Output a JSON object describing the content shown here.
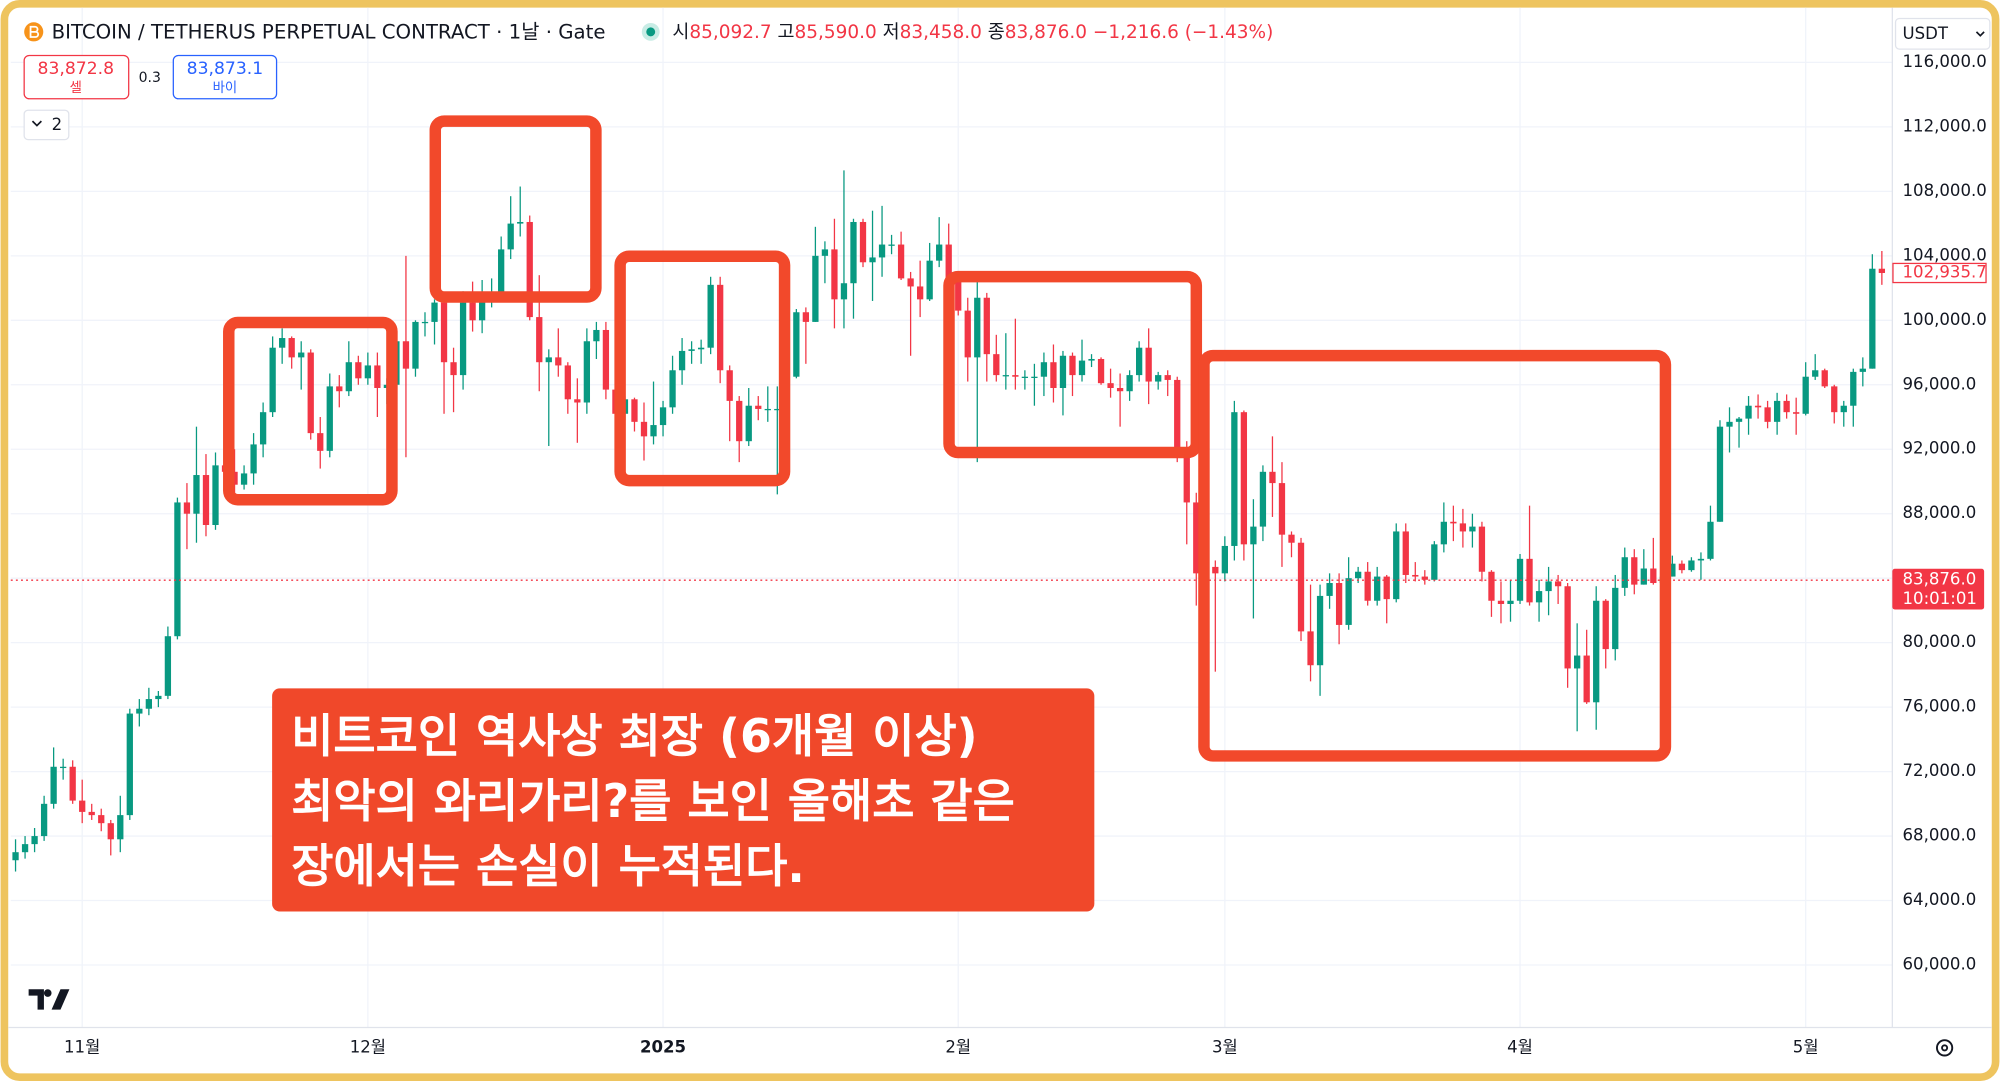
{
  "header": {
    "symbol": "BITCOIN / TETHERUS PERPETUAL CONTRACT · 1날 · Gate",
    "ohlc": [
      {
        "label": "시",
        "value": "85,092.7"
      },
      {
        "label": "고",
        "value": "85,590.0"
      },
      {
        "label": "저",
        "value": "83,458.0"
      },
      {
        "label": "종",
        "value": "83,876.0"
      }
    ],
    "change": "−1,216.6 (−1.43%)"
  },
  "trade": {
    "sell": "83,872.8",
    "sell_label": "셀",
    "spread": "0.3",
    "buy": "83,873.1",
    "buy_label": "바이",
    "indicators": "2",
    "currency": "USDT"
  },
  "annotation": {
    "lines": [
      "비트코인 역사상 최장 (6개월 이상)",
      "최악의 와리가리?를 보인 올해초 같은",
      "장에서는 손실이 누적된다."
    ]
  },
  "chart_data": {
    "type": "candlestick",
    "up_color": "#089981",
    "down_color": "#f23645",
    "grid": true,
    "xlim": [
      -7.5,
      190.1
    ],
    "ylim": [
      56600,
      117500
    ],
    "xticks": [
      {
        "value": 0,
        "label": "11월"
      },
      {
        "value": 30,
        "label": "12월"
      },
      {
        "value": 61,
        "label": "2025"
      },
      {
        "value": 92,
        "label": "2월"
      },
      {
        "value": 120,
        "label": "3월"
      },
      {
        "value": 151,
        "label": "4월"
      },
      {
        "value": 181,
        "label": "5월"
      }
    ],
    "yticks": [
      {
        "value": 60000,
        "label": "60,000.0"
      },
      {
        "value": 64000,
        "label": "64,000.0"
      },
      {
        "value": 68000,
        "label": "68,000.0"
      },
      {
        "value": 72000,
        "label": "72,000.0"
      },
      {
        "value": 76000,
        "label": "76,000.0"
      },
      {
        "value": 80000,
        "label": "80,000.0"
      },
      {
        "value": 84000,
        "label": "84,000.0"
      },
      {
        "value": 88000,
        "label": "88,000.0"
      },
      {
        "value": 92000,
        "label": "92,000.0"
      },
      {
        "value": 96000,
        "label": "96,000.0"
      },
      {
        "value": 100000,
        "label": "100,000.0"
      },
      {
        "value": 104000,
        "label": "104,000.0"
      },
      {
        "value": 108000,
        "label": "108,000.0"
      },
      {
        "value": 112000,
        "label": "112,000.0"
      },
      {
        "value": 116000,
        "label": "116,000.0"
      }
    ],
    "price_labels": [
      {
        "value": 102935.7,
        "label": "102,935.7"
      },
      {
        "value": 83876,
        "label": "83,876.0",
        "time": "10:01:01"
      }
    ],
    "x": [
      -7,
      -6,
      -5,
      -4,
      -3,
      -2,
      -1,
      0,
      1,
      2,
      3,
      4,
      5,
      6,
      7,
      8,
      9,
      10,
      11,
      12,
      13,
      14,
      15,
      16,
      17,
      18,
      19,
      20,
      21,
      22,
      23,
      24,
      25,
      26,
      27,
      28,
      29,
      30,
      31,
      32,
      33,
      34,
      35,
      36,
      37,
      38,
      39,
      40,
      41,
      42,
      43,
      44,
      45,
      46,
      47,
      48,
      49,
      50,
      51,
      52,
      53,
      54,
      55,
      56,
      57,
      58,
      59,
      60,
      61,
      62,
      63,
      64,
      65,
      66,
      67,
      68,
      69,
      70,
      71,
      72,
      73,
      74,
      75,
      76,
      77,
      78,
      79,
      80,
      81,
      82,
      83,
      84,
      85,
      86,
      87,
      88,
      89,
      90,
      91,
      92,
      93,
      94,
      95,
      96,
      97,
      98,
      99,
      100,
      101,
      102,
      103,
      104,
      105,
      106,
      107,
      108,
      109,
      110,
      111,
      112,
      113,
      114,
      115,
      116,
      117,
      118,
      119,
      120,
      121,
      122,
      123,
      124,
      125,
      126,
      127,
      128,
      129,
      130,
      131,
      132,
      133,
      134,
      135,
      136,
      137,
      138,
      139,
      140,
      141,
      142,
      143,
      144,
      145,
      146,
      147,
      148,
      149,
      150,
      151,
      152,
      153,
      154,
      155,
      156,
      157,
      158,
      159,
      160,
      161,
      162,
      163,
      164,
      165,
      166,
      167,
      168,
      169,
      170,
      171,
      172,
      173,
      174,
      175,
      176,
      177,
      178,
      179,
      180,
      181,
      182,
      183,
      184,
      185,
      186,
      187,
      188,
      189
    ],
    "ohlc": [
      [
        66500,
        67800,
        65800,
        67000
      ],
      [
        67000,
        68000,
        66600,
        67500
      ],
      [
        67500,
        68500,
        67000,
        68000
      ],
      [
        68000,
        70500,
        67700,
        70000
      ],
      [
        70000,
        73500,
        69700,
        72300
      ],
      [
        72300,
        72800,
        71500,
        72300
      ],
      [
        72300,
        72700,
        70000,
        70200
      ],
      [
        70200,
        71500,
        68800,
        69500
      ],
      [
        69500,
        70000,
        69000,
        69300
      ],
      [
        69300,
        69700,
        68300,
        68800
      ],
      [
        68800,
        69000,
        66800,
        67800
      ],
      [
        67800,
        70500,
        67000,
        69300
      ],
      [
        69300,
        75900,
        69000,
        75600
      ],
      [
        75600,
        76500,
        74800,
        75900
      ],
      [
        75900,
        77200,
        75500,
        76500
      ],
      [
        76500,
        77000,
        76000,
        76700
      ],
      [
        76700,
        81000,
        76500,
        80400
      ],
      [
        80400,
        89000,
        80200,
        88700
      ],
      [
        88700,
        89900,
        85800,
        88000
      ],
      [
        88000,
        93400,
        86200,
        90400
      ],
      [
        90400,
        91700,
        86600,
        87300
      ],
      [
        87300,
        91800,
        87000,
        91000
      ],
      [
        91000,
        91700,
        89800,
        90600
      ],
      [
        90600,
        92000,
        89300,
        89800
      ],
      [
        89800,
        91000,
        89500,
        90500
      ],
      [
        90500,
        93000,
        89800,
        92300
      ],
      [
        92300,
        94900,
        91500,
        94300
      ],
      [
        94300,
        99000,
        94000,
        98300
      ],
      [
        98300,
        99500,
        97300,
        98900
      ],
      [
        98900,
        99000,
        97000,
        97700
      ],
      [
        97700,
        98700,
        95700,
        98000
      ],
      [
        98000,
        98200,
        92600,
        93000
      ],
      [
        93000,
        94000,
        90800,
        91900
      ],
      [
        91900,
        96700,
        91500,
        95900
      ],
      [
        95900,
        96600,
        94600,
        95600
      ],
      [
        95600,
        98700,
        95300,
        97400
      ],
      [
        97400,
        97800,
        96000,
        96400
      ],
      [
        96400,
        98000,
        96000,
        97200
      ],
      [
        97200,
        98000,
        94000,
        95800
      ],
      [
        95800,
        96400,
        94800,
        96000
      ],
      [
        96000,
        99000,
        94500,
        98700
      ],
      [
        98700,
        104000,
        91500,
        97000
      ],
      [
        97000,
        100000,
        96500,
        99900
      ],
      [
        99900,
        100500,
        99000,
        99900
      ],
      [
        99900,
        101300,
        98500,
        101100
      ],
      [
        101100,
        101300,
        94200,
        97400
      ],
      [
        97400,
        98300,
        94300,
        96600
      ],
      [
        96600,
        101800,
        95700,
        101100
      ],
      [
        101100,
        102400,
        99300,
        100000
      ],
      [
        100000,
        102500,
        99200,
        101400
      ],
      [
        101400,
        102600,
        100800,
        101400
      ],
      [
        101400,
        105200,
        101200,
        104400
      ],
      [
        104400,
        107700,
        103800,
        106000
      ],
      [
        106000,
        108300,
        105200,
        106100
      ],
      [
        106100,
        106500,
        100000,
        100200
      ],
      [
        100200,
        102800,
        95600,
        97400
      ],
      [
        97400,
        98200,
        92200,
        97700
      ],
      [
        97700,
        99500,
        96500,
        97200
      ],
      [
        97200,
        97400,
        94200,
        95100
      ],
      [
        95100,
        96400,
        92400,
        94900
      ],
      [
        94900,
        99500,
        94200,
        98700
      ],
      [
        98700,
        99900,
        97600,
        99400
      ],
      [
        99400,
        99900,
        95100,
        95700
      ],
      [
        95700,
        97300,
        93400,
        94200
      ],
      [
        94200,
        95300,
        93800,
        95100
      ],
      [
        95100,
        95200,
        93100,
        93700
      ],
      [
        93700,
        94900,
        91300,
        92800
      ],
      [
        92800,
        96200,
        92300,
        93500
      ],
      [
        93500,
        95000,
        92800,
        94600
      ],
      [
        94600,
        97800,
        94200,
        96900
      ],
      [
        96900,
        98900,
        96000,
        98100
      ],
      [
        98100,
        98700,
        97300,
        98200
      ],
      [
        98200,
        98800,
        97300,
        98300
      ],
      [
        98300,
        102700,
        97900,
        102200
      ],
      [
        102200,
        102700,
        96100,
        96900
      ],
      [
        96900,
        97200,
        92500,
        95000
      ],
      [
        95000,
        95300,
        91200,
        92500
      ],
      [
        92500,
        95800,
        92200,
        94700
      ],
      [
        94700,
        95300,
        93800,
        94500
      ],
      [
        94500,
        95900,
        93700,
        94500
      ],
      [
        94500,
        95900,
        89200,
        94500
      ],
      [
        94500,
        97300,
        94200,
        96500
      ],
      [
        96500,
        100700,
        96400,
        100500
      ],
      [
        100500,
        100800,
        97300,
        99900
      ],
      [
        99900,
        105800,
        99900,
        104000
      ],
      [
        104000,
        104900,
        102300,
        104400
      ],
      [
        104400,
        106300,
        99500,
        101300
      ],
      [
        101300,
        109300,
        99500,
        102300
      ],
      [
        102300,
        106300,
        100100,
        106100
      ],
      [
        106100,
        106300,
        103300,
        103600
      ],
      [
        103600,
        106800,
        101200,
        103900
      ],
      [
        103900,
        107100,
        102700,
        104700
      ],
      [
        104700,
        105300,
        104100,
        104700
      ],
      [
        104700,
        105500,
        102500,
        102600
      ],
      [
        102600,
        103000,
        97800,
        102100
      ],
      [
        102100,
        103700,
        100200,
        101300
      ],
      [
        101300,
        104800,
        101200,
        103700
      ],
      [
        103700,
        106400,
        103300,
        104700
      ],
      [
        104700,
        106000,
        101500,
        102400
      ],
      [
        102400,
        102800,
        100300,
        100600
      ],
      [
        100600,
        101400,
        96200,
        97700
      ],
      [
        97700,
        102500,
        91200,
        101400
      ],
      [
        101400,
        101700,
        96200,
        97900
      ],
      [
        97900,
        99100,
        96200,
        96600
      ],
      [
        96600,
        99200,
        95700,
        96600
      ],
      [
        96600,
        100100,
        95700,
        96500
      ],
      [
        96500,
        96900,
        95700,
        96500
      ],
      [
        96500,
        97300,
        94700,
        96500
      ],
      [
        96500,
        98000,
        95300,
        97400
      ],
      [
        97400,
        98500,
        94900,
        95800
      ],
      [
        95800,
        98100,
        94100,
        97800
      ],
      [
        97800,
        98000,
        95300,
        96600
      ],
      [
        96600,
        98800,
        96200,
        97500
      ],
      [
        97500,
        97900,
        97100,
        97600
      ],
      [
        97600,
        97700,
        96000,
        96100
      ],
      [
        96100,
        97000,
        95200,
        95800
      ],
      [
        95800,
        96700,
        93400,
        95600
      ],
      [
        95600,
        96900,
        95000,
        96600
      ],
      [
        96600,
        98700,
        96200,
        98300
      ],
      [
        98300,
        99500,
        94800,
        96200
      ],
      [
        96200,
        96800,
        95700,
        96600
      ],
      [
        96600,
        96900,
        95300,
        96300
      ],
      [
        96300,
        96500,
        91200,
        91500
      ],
      [
        91500,
        92500,
        86100,
        88700
      ],
      [
        88700,
        89300,
        82300,
        84300
      ],
      [
        84300,
        87100,
        82700,
        84700
      ],
      [
        84700,
        85100,
        78200,
        84300
      ],
      [
        84300,
        86600,
        83800,
        86000
      ],
      [
        86000,
        95000,
        85100,
        94300
      ],
      [
        94300,
        94400,
        85100,
        86100
      ],
      [
        86100,
        88900,
        81500,
        87200
      ],
      [
        87200,
        91000,
        86300,
        90600
      ],
      [
        90600,
        92800,
        87800,
        89900
      ],
      [
        89900,
        91200,
        84700,
        86700
      ],
      [
        86700,
        86900,
        85300,
        86200
      ],
      [
        86200,
        86500,
        80100,
        80700
      ],
      [
        80700,
        83600,
        77600,
        78600
      ],
      [
        78600,
        83600,
        76700,
        82900
      ],
      [
        82900,
        84300,
        82100,
        83700
      ],
      [
        83700,
        84300,
        79900,
        81100
      ],
      [
        81100,
        85300,
        80800,
        84000
      ],
      [
        84000,
        84700,
        83700,
        84400
      ],
      [
        84400,
        85000,
        82300,
        82600
      ],
      [
        82600,
        84700,
        82300,
        84100
      ],
      [
        84100,
        84200,
        81200,
        82700
      ],
      [
        82700,
        87400,
        82500,
        86900
      ],
      [
        86900,
        87400,
        83700,
        84200
      ],
      [
        84200,
        85000,
        83800,
        84100
      ],
      [
        84100,
        84500,
        83600,
        83900
      ],
      [
        83900,
        86300,
        83800,
        86100
      ],
      [
        86100,
        88700,
        85600,
        87500
      ],
      [
        87500,
        88500,
        86300,
        87400
      ],
      [
        87400,
        88300,
        85900,
        86900
      ],
      [
        86900,
        88000,
        85900,
        87200
      ],
      [
        87200,
        87500,
        83800,
        84400
      ],
      [
        84400,
        84500,
        81600,
        82600
      ],
      [
        82600,
        83800,
        81200,
        82400
      ],
      [
        82400,
        83900,
        81300,
        82600
      ],
      [
        82600,
        85500,
        82400,
        85200
      ],
      [
        85200,
        88500,
        82300,
        82500
      ],
      [
        82500,
        83900,
        81300,
        83200
      ],
      [
        83200,
        84700,
        81700,
        83800
      ],
      [
        83800,
        84200,
        82400,
        83500
      ],
      [
        83500,
        83700,
        77200,
        78400
      ],
      [
        78400,
        81200,
        74500,
        79200
      ],
      [
        79200,
        80800,
        76200,
        76300
      ],
      [
        76300,
        83500,
        74600,
        82600
      ],
      [
        82600,
        82700,
        78400,
        79600
      ],
      [
        79600,
        84200,
        78900,
        83400
      ],
      [
        83400,
        85900,
        82900,
        85300
      ],
      [
        85300,
        85800,
        83000,
        83600
      ],
      [
        83600,
        85800,
        83600,
        84600
      ],
      [
        84600,
        86500,
        83600,
        83700
      ],
      [
        83700,
        85500,
        83200,
        84100
      ],
      [
        84100,
        85400,
        84100,
        84900
      ],
      [
        84900,
        85100,
        84300,
        84500
      ],
      [
        84500,
        85300,
        84400,
        85100
      ],
      [
        85100,
        85600,
        83900,
        85200
      ],
      [
        85200,
        88500,
        85100,
        87500
      ],
      [
        87500,
        93800,
        87500,
        93400
      ],
      [
        93400,
        94600,
        91800,
        93700
      ],
      [
        93700,
        94000,
        92100,
        93900
      ],
      [
        93900,
        95300,
        92900,
        94700
      ],
      [
        94700,
        95400,
        93900,
        94600
      ],
      [
        94600,
        95000,
        93300,
        93700
      ],
      [
        93700,
        95500,
        92900,
        95000
      ],
      [
        95000,
        95400,
        93900,
        94300
      ],
      [
        94300,
        95200,
        92900,
        94200
      ],
      [
        94200,
        97400,
        94100,
        96500
      ],
      [
        96500,
        97900,
        96300,
        96900
      ],
      [
        96900,
        97000,
        95800,
        95900
      ],
      [
        95900,
        96000,
        93600,
        94300
      ],
      [
        94300,
        95000,
        93400,
        94700
      ],
      [
        94700,
        97000,
        93400,
        96800
      ],
      [
        96800,
        97700,
        95900,
        97000
      ],
      [
        97000,
        104100,
        97000,
        103200
      ],
      [
        103200,
        104300,
        102200,
        102935.7
      ]
    ]
  }
}
